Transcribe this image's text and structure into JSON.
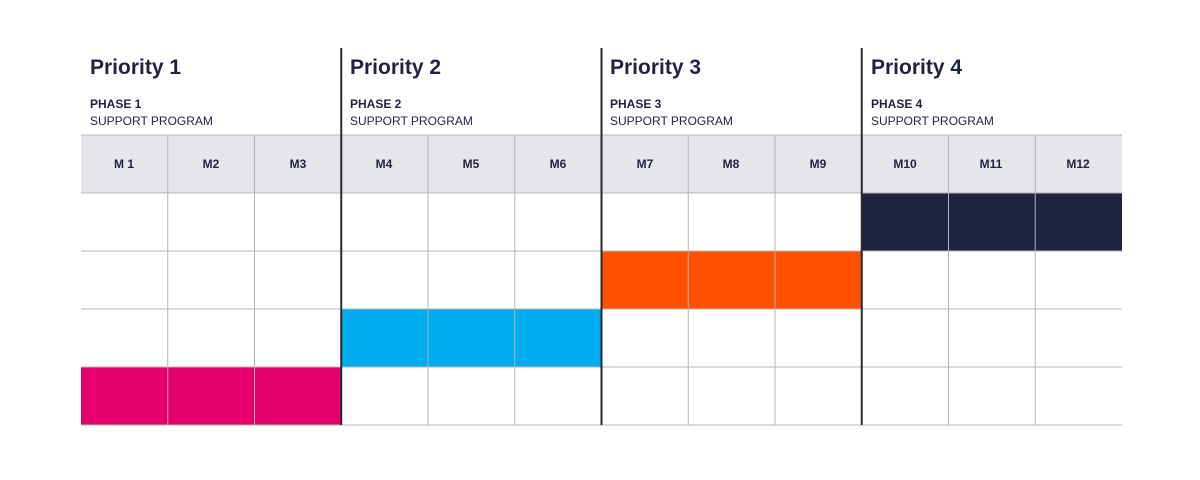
{
  "timeline": {
    "priorities": [
      {
        "title": "Priority 1",
        "phase": "PHASE 1",
        "program": "SUPPORT PROGRAM",
        "color": "#e5006d",
        "row": 4
      },
      {
        "title": "Priority 2",
        "phase": "PHASE 2",
        "program": "SUPPORT PROGRAM",
        "color": "#00adee",
        "row": 3
      },
      {
        "title": "Priority 3",
        "phase": "PHASE 3",
        "program": "SUPPORT PROGRAM",
        "color": "#ff5100",
        "row": 2
      },
      {
        "title": "Priority 4",
        "phase": "PHASE 4",
        "program": "SUPPORT PROGRAM",
        "color": "#20233f",
        "row": 1
      }
    ],
    "months": [
      "M 1",
      "M2",
      "M3",
      "M4",
      "M5",
      "M6",
      "M7",
      "M8",
      "M9",
      "M10",
      "M11",
      "M12"
    ],
    "row_count": 4,
    "header_bg_color": "#e6e6ea",
    "grid_line_color": "#b4b4b4",
    "divider_color": "#2a2a2a"
  }
}
